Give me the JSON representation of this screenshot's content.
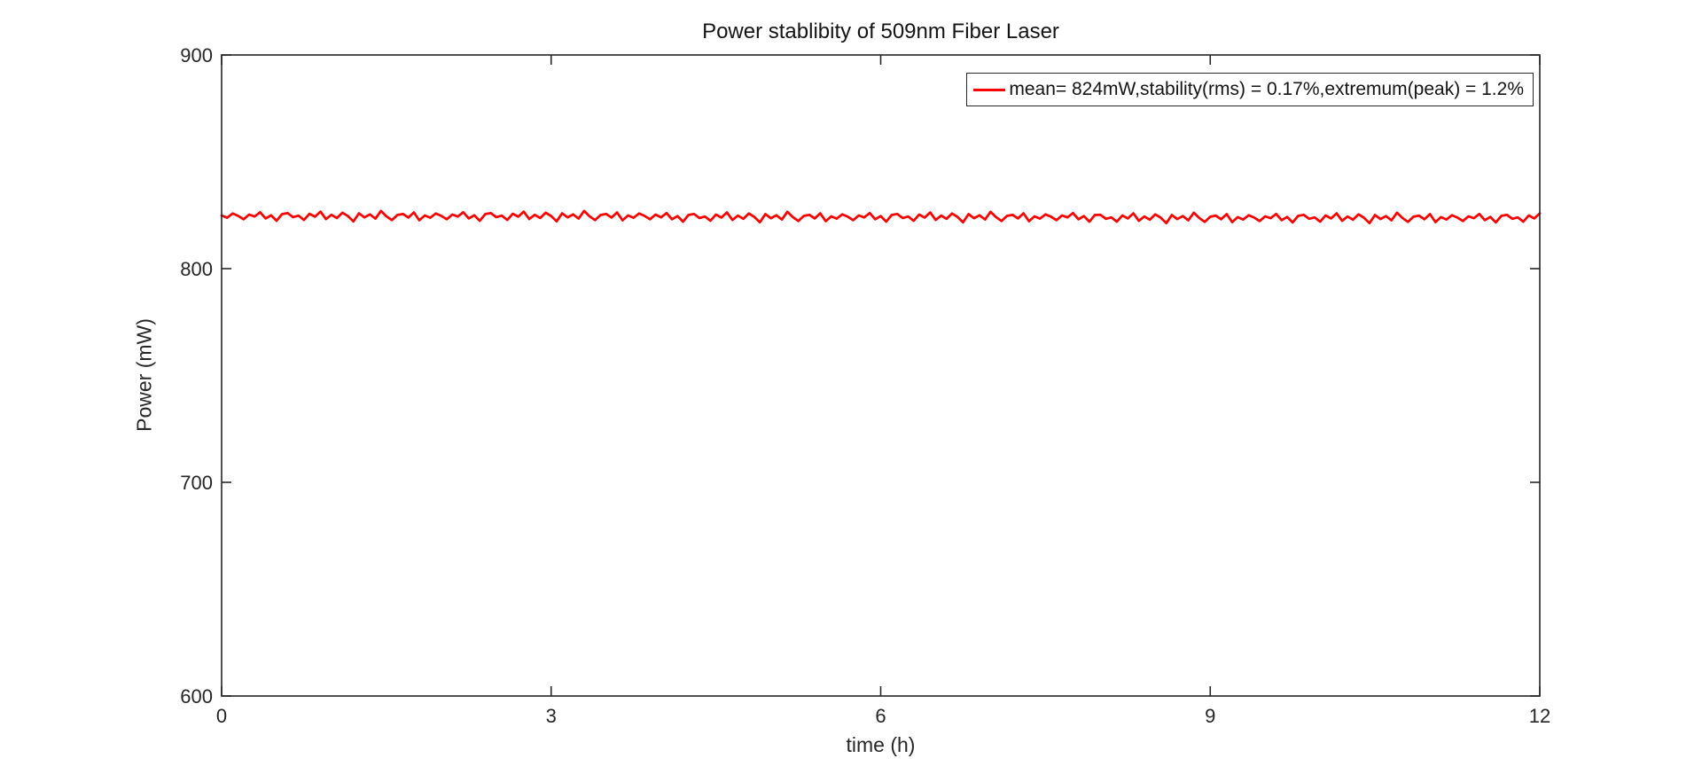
{
  "figure": {
    "background": "#ffffff",
    "axis_color": "#262626"
  },
  "chart_data": {
    "type": "line",
    "title": "Power stablibity of 509nm Fiber Laser",
    "xlabel": "time (h)",
    "ylabel": "Power (mW)",
    "xlim": [
      0,
      12
    ],
    "ylim": [
      600,
      900
    ],
    "xticks": [
      0,
      3,
      6,
      9,
      12
    ],
    "yticks": [
      600,
      700,
      800,
      900
    ],
    "grid": false,
    "legend_position": "northeast",
    "series": [
      {
        "name": "mean= 824mW,stability(rms) = 0.17%,extremum(peak) = 1.2%",
        "color": "#ff0000",
        "mean_mW": 824,
        "stability_rms_pct": 0.17,
        "extremum_peak_pct": 1.2,
        "x_start": 0,
        "x_step": 0.05,
        "values": [
          824.9,
          823.8,
          825.8,
          824.7,
          823.1,
          825.3,
          824.4,
          826.4,
          823.5,
          825.0,
          822.4,
          825.5,
          826.0,
          824.1,
          824.8,
          822.8,
          825.7,
          824.3,
          826.7,
          823.2,
          825.2,
          823.7,
          826.2,
          824.6,
          822.1,
          825.9,
          824.0,
          825.4,
          823.4,
          827.0,
          824.5,
          822.7,
          825.1,
          825.6,
          823.9,
          826.3,
          822.6,
          824.9,
          823.8,
          825.8,
          824.7,
          823.1,
          825.3,
          824.4,
          826.4,
          823.5,
          825.0,
          822.4,
          825.5,
          826.0,
          824.1,
          824.8,
          822.8,
          825.7,
          824.3,
          826.7,
          823.2,
          825.2,
          823.7,
          826.2,
          824.6,
          822.1,
          825.9,
          824.0,
          825.4,
          823.4,
          827.0,
          824.5,
          822.7,
          825.1,
          825.6,
          823.9,
          826.3,
          822.6,
          824.9,
          823.8,
          825.8,
          824.7,
          823.1,
          825.3,
          824.0,
          826.0,
          823.1,
          824.6,
          822.0,
          825.1,
          825.6,
          823.7,
          824.4,
          822.4,
          825.3,
          823.9,
          826.3,
          822.8,
          824.8,
          823.3,
          825.8,
          824.2,
          821.7,
          825.5,
          823.6,
          825.0,
          823.0,
          826.6,
          824.1,
          822.3,
          824.7,
          825.2,
          823.5,
          825.9,
          822.2,
          824.5,
          823.4,
          825.4,
          824.3,
          822.7,
          824.9,
          824.0,
          826.0,
          823.1,
          824.6,
          822.0,
          825.1,
          825.6,
          823.7,
          824.4,
          822.4,
          825.3,
          823.9,
          826.3,
          822.8,
          824.8,
          823.3,
          825.8,
          824.2,
          821.7,
          825.5,
          823.6,
          825.0,
          823.0,
          826.6,
          824.1,
          822.3,
          824.7,
          825.2,
          823.5,
          825.9,
          822.2,
          824.5,
          823.4,
          825.4,
          824.3,
          822.7,
          824.9,
          824.0,
          826.0,
          823.1,
          824.6,
          822.0,
          825.1,
          825.2,
          823.3,
          824.0,
          822.0,
          824.9,
          823.5,
          825.9,
          822.4,
          824.4,
          822.9,
          825.4,
          823.8,
          821.3,
          825.1,
          823.2,
          824.6,
          822.6,
          826.2,
          823.7,
          821.9,
          824.3,
          824.8,
          823.1,
          825.5,
          821.8,
          824.1,
          823.0,
          825.0,
          823.9,
          822.3,
          824.5,
          823.6,
          825.6,
          822.7,
          824.2,
          821.6,
          824.7,
          825.2,
          823.3,
          824.0,
          822.0,
          824.9,
          823.5,
          825.9,
          822.4,
          824.4,
          822.9,
          825.4,
          823.8,
          821.3,
          825.1,
          823.2,
          824.6,
          822.6,
          826.2,
          823.7,
          821.9,
          824.3,
          824.8,
          823.1,
          825.5,
          821.8,
          824.1,
          823.0,
          825.0,
          823.9,
          822.3,
          824.5,
          823.6,
          825.6,
          822.7,
          824.2,
          821.6,
          824.7,
          825.2,
          823.3,
          824.0,
          822.0,
          824.9,
          823.5,
          825.9
        ]
      }
    ]
  }
}
